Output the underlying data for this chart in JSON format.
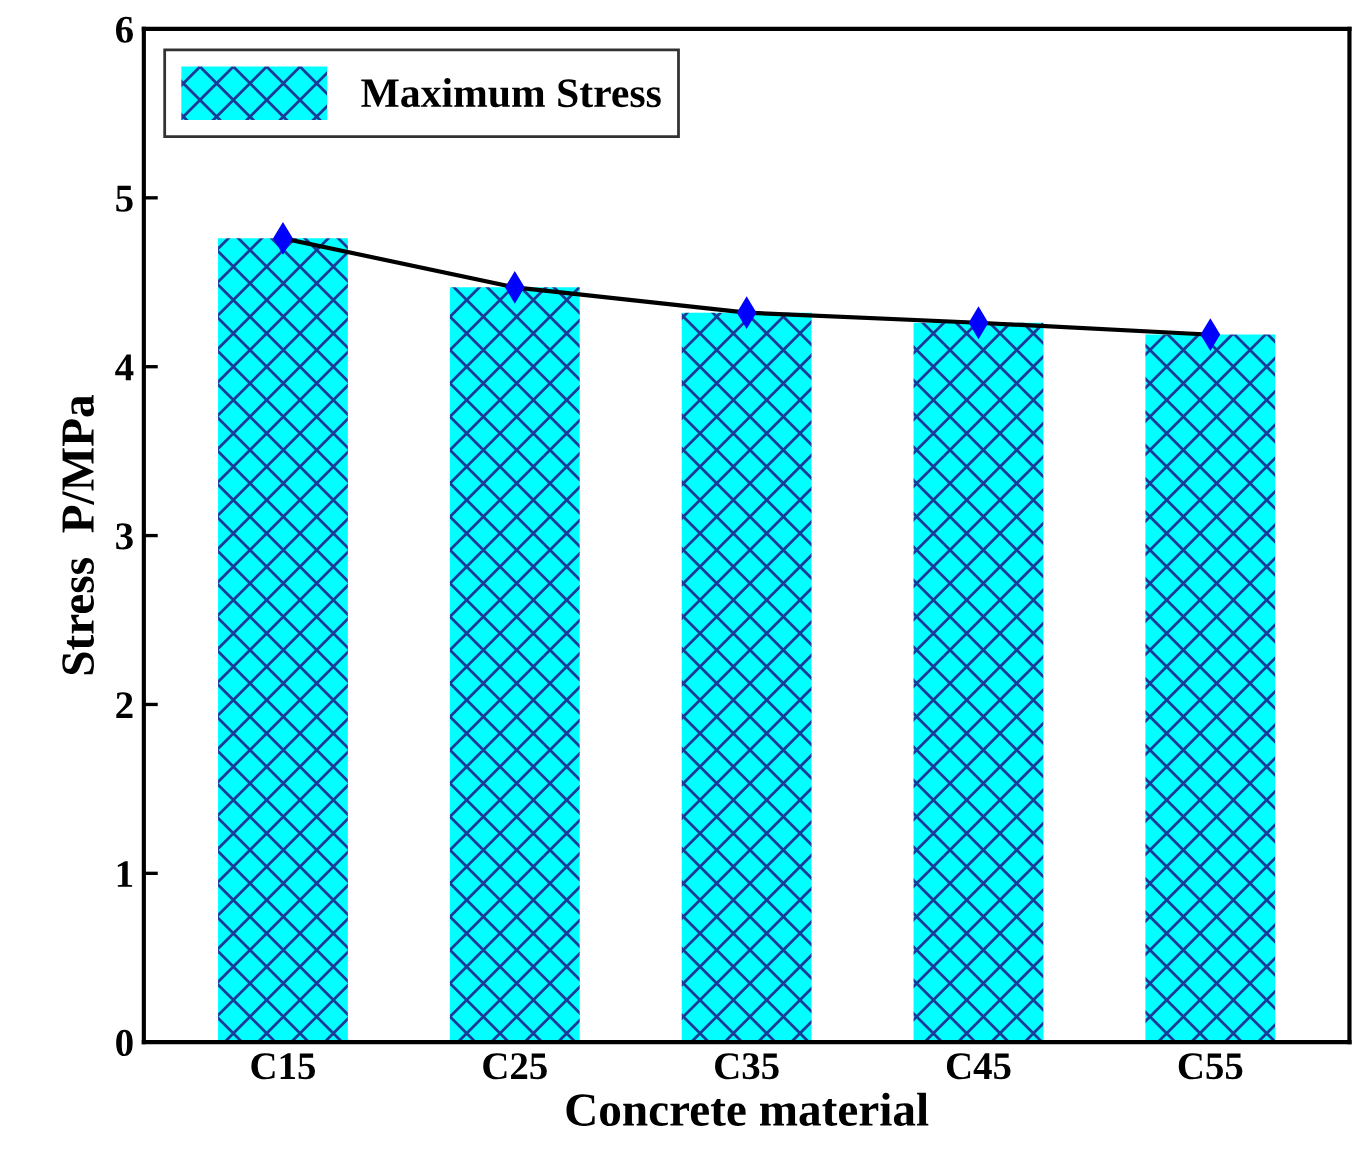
{
  "chart_data": {
    "type": "bar",
    "xlabel": "Concrete material",
    "ylabel": "Stress  P/MPa",
    "categories": [
      "C15",
      "C25",
      "C35",
      "C45",
      "C55"
    ],
    "series": [
      {
        "name": "Maximum Stress",
        "color": "#00ffff",
        "values": [
          4.76,
          4.47,
          4.32,
          4.26,
          4.19
        ]
      },
      {
        "type": "line",
        "color": "#000000",
        "values": [
          4.76,
          4.47,
          4.32,
          4.26,
          4.19
        ]
      }
    ],
    "ylim": [
      0,
      6
    ],
    "yticks": [
      0,
      1,
      2,
      3,
      4,
      5,
      6
    ],
    "grid": false,
    "legend": "top left",
    "marker": "diamond",
    "line_style": "solid"
  }
}
